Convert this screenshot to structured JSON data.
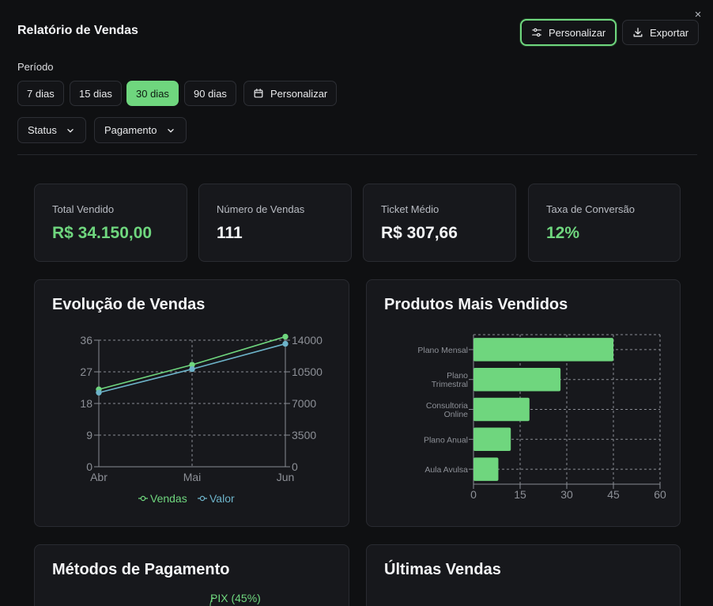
{
  "header": {
    "title": "Relatório de Vendas",
    "customize_label": "Personalizar",
    "export_label": "Exportar",
    "close_icon": "×"
  },
  "filters": {
    "period_label": "Período",
    "periods": [
      "7 dias",
      "15 dias",
      "30 dias",
      "90 dias"
    ],
    "selected_period": "30 dias",
    "custom_label": "Personalizar",
    "status_label": "Status",
    "payment_label": "Pagamento"
  },
  "stats": [
    {
      "label": "Total Vendido",
      "value": "R$ 34.150,00"
    },
    {
      "label": "Número de Vendas",
      "value": "111"
    },
    {
      "label": "Ticket Médio",
      "value": "R$ 307,66"
    },
    {
      "label": "Taxa de Conversão",
      "value": "12%"
    }
  ],
  "sections": {
    "evolution_title": "Evolução de Vendas",
    "products_title": "Produtos Mais Vendidos",
    "payments_title": "Métodos de Pagamento",
    "latest_title": "Últimas Vendas",
    "payment_partial_label": "PIX (45%)"
  },
  "colors": {
    "accent": "#6fd67e",
    "series2": "#6db3c9"
  },
  "chart_data": [
    {
      "type": "line",
      "title": "Evolução de Vendas",
      "categories": [
        "Abr",
        "Mai",
        "Jun"
      ],
      "series": [
        {
          "name": "Vendas",
          "axis": "left",
          "values": [
            22,
            29,
            37
          ]
        },
        {
          "name": "Valor",
          "axis": "right",
          "values": [
            8200,
            10800,
            13600
          ]
        }
      ],
      "yleft": {
        "ticks": [
          0,
          9,
          18,
          27,
          36
        ],
        "ylim": [
          0,
          36
        ]
      },
      "yright": {
        "ticks": [
          0,
          3500,
          7000,
          10500,
          14000
        ],
        "ylim": [
          0,
          14000
        ]
      },
      "legend": "bottom"
    },
    {
      "type": "bar",
      "orientation": "horizontal",
      "title": "Produtos Mais Vendidos",
      "categories": [
        [
          "Plano Mensal"
        ],
        [
          "Plano",
          "Trimestral"
        ],
        [
          "Consultoria",
          "Online"
        ],
        [
          "Plano Anual"
        ],
        [
          "Aula Avulsa"
        ]
      ],
      "values": [
        45,
        28,
        18,
        12,
        8
      ],
      "xticks": [
        0,
        15,
        30,
        45,
        60
      ],
      "xlim": [
        0,
        60
      ]
    }
  ]
}
